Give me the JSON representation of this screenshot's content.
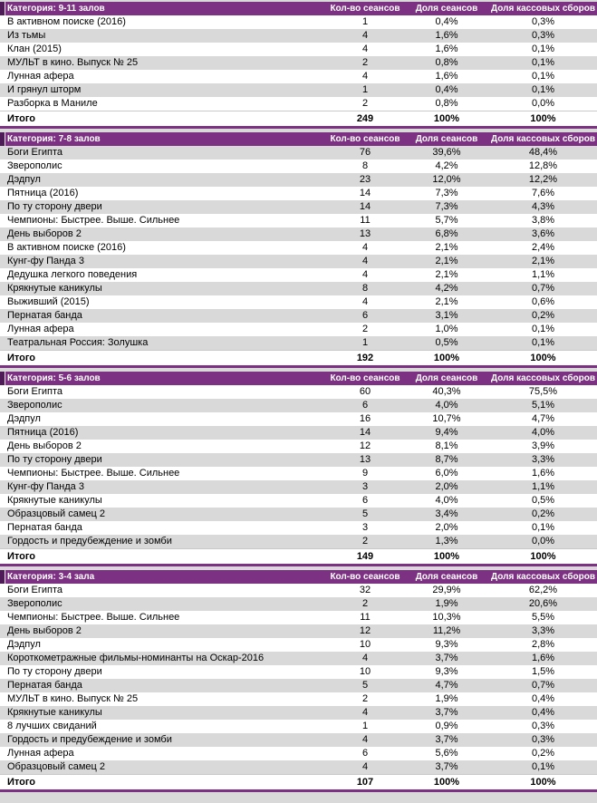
{
  "colors": {
    "header_bg": "#7C3182",
    "header_accent": "#4E1A58",
    "header_text": "#FFFFFF",
    "row_bg": "#FFFFFF",
    "row_alt_bg": "#D9D9D9",
    "total_border": "#7C3182",
    "page_bg": "#D9D9D9",
    "text": "#000000"
  },
  "table": {
    "columns": [
      "Кол-во сеансов",
      "Доля сеансов",
      "Доля кассовых сборов"
    ],
    "total_label": "Итого",
    "sections": [
      {
        "category": "Категория: 9-11 залов",
        "stripe_start": "white",
        "rows": [
          [
            "В активном поиске (2016)",
            "1",
            "0,4%",
            "0,3%"
          ],
          [
            "Из тьмы",
            "4",
            "1,6%",
            "0,3%"
          ],
          [
            "Клан (2015)",
            "4",
            "1,6%",
            "0,1%"
          ],
          [
            "МУЛЬТ в кино. Выпуск № 25",
            "2",
            "0,8%",
            "0,1%"
          ],
          [
            "Лунная афера",
            "4",
            "1,6%",
            "0,1%"
          ],
          [
            "И грянул шторм",
            "1",
            "0,4%",
            "0,1%"
          ],
          [
            "Разборка в Маниле",
            "2",
            "0,8%",
            "0,0%"
          ]
        ],
        "total": [
          "Итого",
          "249",
          "100%",
          "100%"
        ]
      },
      {
        "category": "Категория: 7-8 залов",
        "stripe_start": "gray",
        "rows": [
          [
            "Боги Египта",
            "76",
            "39,6%",
            "48,4%"
          ],
          [
            "Зверополис",
            "8",
            "4,2%",
            "12,8%"
          ],
          [
            "Дэдпул",
            "23",
            "12,0%",
            "12,2%"
          ],
          [
            "Пятница (2016)",
            "14",
            "7,3%",
            "7,6%"
          ],
          [
            "По ту сторону двери",
            "14",
            "7,3%",
            "4,3%"
          ],
          [
            "Чемпионы: Быстрее. Выше. Сильнее",
            "11",
            "5,7%",
            "3,8%"
          ],
          [
            "День выборов 2",
            "13",
            "6,8%",
            "3,6%"
          ],
          [
            "В активном поиске (2016)",
            "4",
            "2,1%",
            "2,4%"
          ],
          [
            "Кунг-фу Панда 3",
            "4",
            "2,1%",
            "2,1%"
          ],
          [
            "Дедушка легкого поведения",
            "4",
            "2,1%",
            "1,1%"
          ],
          [
            "Крякнутые каникулы",
            "8",
            "4,2%",
            "0,7%"
          ],
          [
            "Выживший (2015)",
            "4",
            "2,1%",
            "0,6%"
          ],
          [
            "Пернатая банда",
            "6",
            "3,1%",
            "0,2%"
          ],
          [
            "Лунная афера",
            "2",
            "1,0%",
            "0,1%"
          ],
          [
            "Театральная Россия: Золушка",
            "1",
            "0,5%",
            "0,1%"
          ]
        ],
        "total": [
          "Итого",
          "192",
          "100%",
          "100%"
        ]
      },
      {
        "category": "Категория: 5-6 залов",
        "stripe_start": "white",
        "rows": [
          [
            "Боги Египта",
            "60",
            "40,3%",
            "75,5%"
          ],
          [
            "Зверополис",
            "6",
            "4,0%",
            "5,1%"
          ],
          [
            "Дэдпул",
            "16",
            "10,7%",
            "4,7%"
          ],
          [
            "Пятница (2016)",
            "14",
            "9,4%",
            "4,0%"
          ],
          [
            "День выборов 2",
            "12",
            "8,1%",
            "3,9%"
          ],
          [
            "По ту сторону двери",
            "13",
            "8,7%",
            "3,3%"
          ],
          [
            "Чемпионы: Быстрее. Выше. Сильнее",
            "9",
            "6,0%",
            "1,6%"
          ],
          [
            "Кунг-фу Панда 3",
            "3",
            "2,0%",
            "1,1%"
          ],
          [
            "Крякнутые каникулы",
            "6",
            "4,0%",
            "0,5%"
          ],
          [
            "Образцовый самец 2",
            "5",
            "3,4%",
            "0,2%"
          ],
          [
            "Пернатая банда",
            "3",
            "2,0%",
            "0,1%"
          ],
          [
            "Гордость и предубеждение и зомби",
            "2",
            "1,3%",
            "0,0%"
          ]
        ],
        "total": [
          "Итого",
          "149",
          "100%",
          "100%"
        ]
      },
      {
        "category": "Категория: 3-4 зала",
        "stripe_start": "white",
        "rows": [
          [
            "Боги Египта",
            "32",
            "29,9%",
            "62,2%"
          ],
          [
            "Зверополис",
            "2",
            "1,9%",
            "20,6%"
          ],
          [
            "Чемпионы: Быстрее. Выше. Сильнее",
            "11",
            "10,3%",
            "5,5%"
          ],
          [
            "День выборов 2",
            "12",
            "11,2%",
            "3,3%"
          ],
          [
            "Дэдпул",
            "10",
            "9,3%",
            "2,8%"
          ],
          [
            "Короткометражные фильмы-номинанты на Оскар-2016",
            "4",
            "3,7%",
            "1,6%"
          ],
          [
            "По ту сторону двери",
            "10",
            "9,3%",
            "1,5%"
          ],
          [
            "Пернатая банда",
            "5",
            "4,7%",
            "0,7%"
          ],
          [
            "МУЛЬТ в кино. Выпуск № 25",
            "2",
            "1,9%",
            "0,4%"
          ],
          [
            "Крякнутые каникулы",
            "4",
            "3,7%",
            "0,4%"
          ],
          [
            "8 лучших свиданий",
            "1",
            "0,9%",
            "0,3%"
          ],
          [
            "Гордость и предубеждение и зомби",
            "4",
            "3,7%",
            "0,3%"
          ],
          [
            "Лунная афера",
            "6",
            "5,6%",
            "0,2%"
          ],
          [
            "Образцовый самец 2",
            "4",
            "3,7%",
            "0,1%"
          ]
        ],
        "total": [
          "Итого",
          "107",
          "100%",
          "100%"
        ]
      }
    ]
  }
}
